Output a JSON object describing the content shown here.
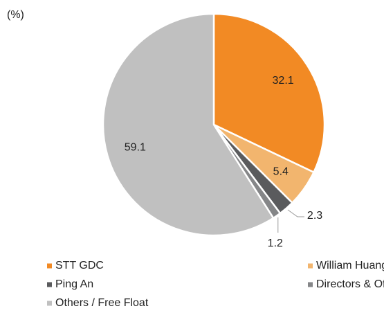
{
  "chart_data": {
    "type": "pie",
    "title": "(%)",
    "categories": [
      "STT GDC",
      "William Huang",
      "Ping An",
      "Directors & Officers",
      "Others / Free Float"
    ],
    "values": [
      32.1,
      5.4,
      2.3,
      1.2,
      59.1
    ],
    "colors": [
      "#f28a24",
      "#f2b56e",
      "#5a5b5d",
      "#858688",
      "#c0c0c0"
    ],
    "legend": "bottom"
  }
}
